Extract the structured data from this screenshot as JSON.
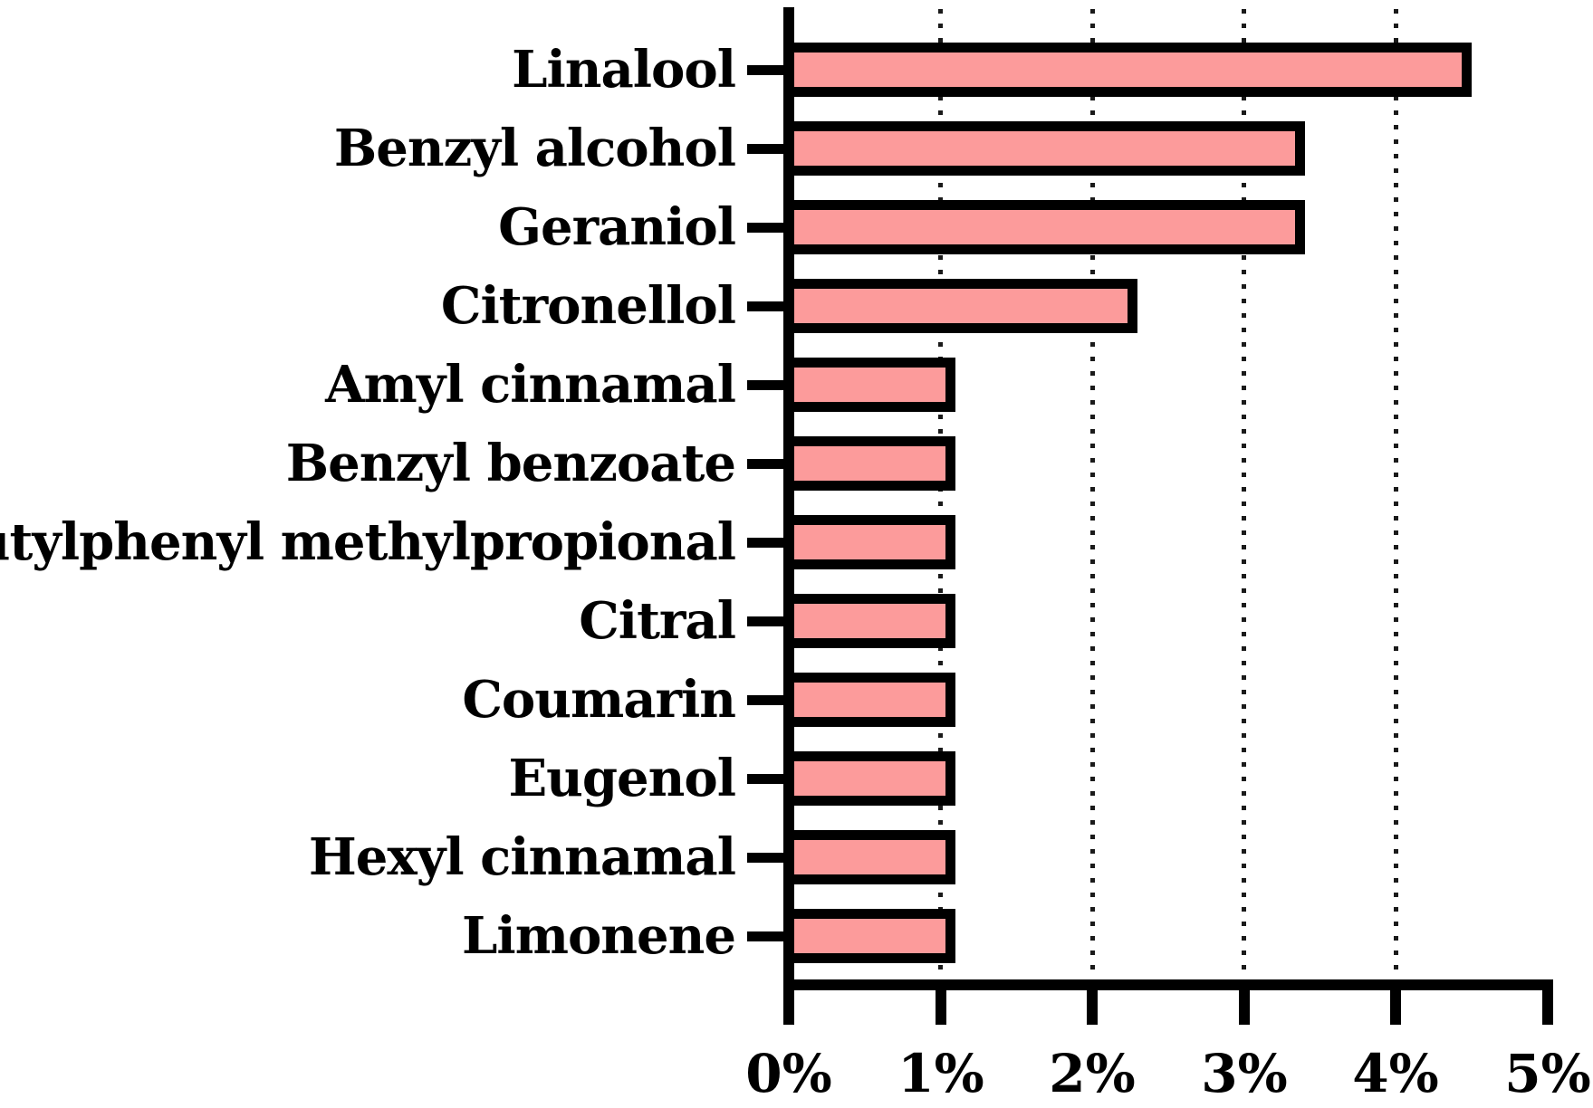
{
  "figure": {
    "background_color": "#ffffff",
    "title": ""
  },
  "chart_data": {
    "type": "bar",
    "orientation": "horizontal",
    "title": "",
    "xlabel": "",
    "ylabel": "",
    "categories": [
      "Linalool",
      "Benzyl alcohol",
      "Geraniol",
      "Citronellol",
      "Amyl cinnamal",
      "Benzyl benzoate",
      "Butylphenyl methylpropional",
      "Citral",
      "Coumarin",
      "Eugenol",
      "Hexyl cinnamal",
      "Limonene"
    ],
    "values": [
      4.5,
      3.4,
      3.4,
      2.3,
      1.1,
      1.1,
      1.1,
      1.1,
      1.1,
      1.1,
      1.1,
      1.1
    ],
    "value_unit": "%",
    "xlim": [
      0,
      5
    ],
    "x_ticks": [
      0,
      1,
      2,
      3,
      4,
      5
    ],
    "x_tick_labels": [
      "0%",
      "1%",
      "2%",
      "3%",
      "4%",
      "5%"
    ],
    "gridlines_at": [
      1,
      2,
      3,
      4
    ],
    "grid_style": "dotted",
    "grid_on": true,
    "legend_position": "none",
    "colors": {
      "bar_fill": "#FC9B9B",
      "bar_border": "#000000",
      "axis": "#000000",
      "grid": "#1a1a1a",
      "text": "#000000"
    }
  }
}
